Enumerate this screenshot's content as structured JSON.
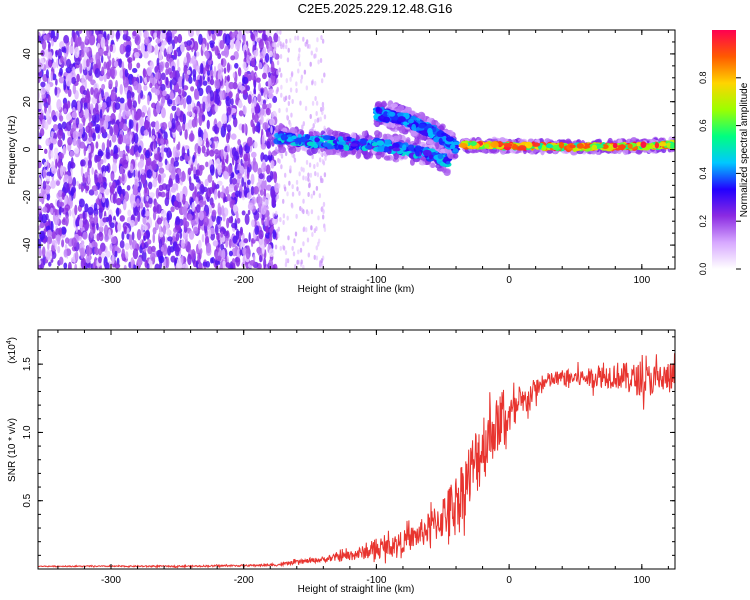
{
  "title": "C2E5.2025.229.12.48.G16",
  "chart_data": [
    {
      "type": "heatmap",
      "xlabel": "Height of straight line (km)",
      "ylabel": "Frequency (Hz)",
      "xlim": [
        -355,
        125
      ],
      "ylim": [
        -50,
        50
      ],
      "xticks": [
        -300,
        -200,
        -100,
        0,
        100
      ],
      "yticks": [
        -40,
        -20,
        0,
        20,
        40
      ],
      "colorbar": {
        "label": "Normalized spectral amplitude",
        "range": [
          0,
          1
        ],
        "ticks": [
          "0.0",
          "0.2",
          "0.4",
          "0.6",
          "0.8"
        ],
        "colors": [
          "#ffffff",
          "#d7a8ff",
          "#8b2be2",
          "#2200ff",
          "#00c8ff",
          "#00ff80",
          "#9cff00",
          "#ffd400",
          "#ff5a00",
          "#ff0050"
        ]
      },
      "features": [
        {
          "name": "noise",
          "x_range": [
            -355,
            -175
          ],
          "y_range": [
            -50,
            50
          ],
          "amplitude": [
            0.05,
            0.3
          ]
        },
        {
          "name": "main-trace",
          "points": [
            [
              -175,
              5
            ],
            [
              -150,
              3.5
            ],
            [
              -120,
              2.5
            ],
            [
              -100,
              2
            ],
            [
              -80,
              0
            ],
            [
              -60,
              -2
            ],
            [
              -45,
              -5
            ]
          ],
          "amplitude": [
            0.25,
            0.5
          ]
        },
        {
          "name": "upper-branch",
          "points": [
            [
              -100,
              15
            ],
            [
              -80,
              13
            ],
            [
              -60,
              8
            ],
            [
              -48,
              4
            ],
            [
              -40,
              1
            ]
          ],
          "amplitude": [
            0.3,
            0.45
          ]
        },
        {
          "name": "steady-trace",
          "points": [
            [
              -35,
              2
            ],
            [
              0,
              1.5
            ],
            [
              50,
              1
            ],
            [
              100,
              1.5
            ],
            [
              125,
              2
            ]
          ],
          "amplitude": [
            0.5,
            1.0
          ]
        }
      ]
    },
    {
      "type": "line",
      "xlabel": "Height of straight line (km)",
      "ylabel": "SNR (10 * v/v)",
      "scale_label": "(x10",
      "scale_exp": "4",
      "xlim": [
        -355,
        125
      ],
      "ylim": [
        0,
        1.75
      ],
      "xticks": [
        -300,
        -200,
        -100,
        0,
        100
      ],
      "yticks": [
        0.5,
        1.0,
        1.5
      ],
      "color": "#e8342f",
      "series": [
        {
          "x": [
            -355,
            -300,
            -250,
            -200,
            -175,
            -160,
            -140,
            -120,
            -100,
            -90,
            -80,
            -70,
            -60,
            -50,
            -40,
            -30,
            -20,
            -10,
            0,
            10,
            20,
            30,
            40,
            60,
            80,
            100,
            125
          ],
          "y": [
            0.02,
            0.02,
            0.02,
            0.025,
            0.03,
            0.05,
            0.07,
            0.1,
            0.14,
            0.17,
            0.2,
            0.24,
            0.3,
            0.38,
            0.5,
            0.68,
            0.9,
            1.05,
            1.12,
            1.2,
            1.32,
            1.38,
            1.4,
            1.4,
            1.42,
            1.38,
            1.4
          ],
          "noise": [
            0.003,
            0.004,
            0.005,
            0.006,
            0.008,
            0.015,
            0.02,
            0.04,
            0.06,
            0.07,
            0.08,
            0.09,
            0.12,
            0.16,
            0.2,
            0.25,
            0.28,
            0.2,
            0.15,
            0.12,
            0.08,
            0.06,
            0.06,
            0.07,
            0.1,
            0.12,
            0.12
          ]
        }
      ]
    }
  ]
}
